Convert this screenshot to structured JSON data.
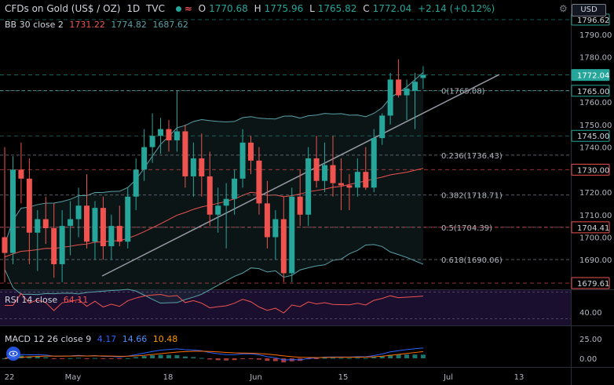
{
  "header": {
    "symbol": "CFDs on Gold (US$ / OZ)",
    "interval": "1D",
    "source": "TVC",
    "o_label": "O",
    "o_value": "1770.68",
    "h_label": "H",
    "h_value": "1775.96",
    "l_label": "L",
    "l_value": "1765.82",
    "c_label": "C",
    "c_value": "1772.04",
    "change": "+2.14 (+0.12%)",
    "currency": "USD"
  },
  "bb_legend": {
    "name": "BB 30 close 2",
    "v1": "1731.22",
    "v2": "1774.82",
    "v3": "1687.62"
  },
  "rsi_legend": {
    "name": "RSI 14 close",
    "v1": "64.11"
  },
  "macd_legend": {
    "name": "MACD 12 26 close 9",
    "v1": "4.17",
    "v2": "14.66",
    "v3": "10.48"
  },
  "colors": {
    "up": "#26a69a",
    "down": "#ef5350",
    "bb_basis": "#ef5350",
    "bb_band": "#5aa0a8",
    "trendline": "#9598a1",
    "rsi_line": "#ef5350",
    "rsi_bg": "#1a0f2e",
    "macd_line": "#2962ff",
    "signal_line": "#ff6d00"
  },
  "chart_data": {
    "type": "candlestick",
    "x_labels": [
      "22",
      "May",
      "18",
      "Jun",
      "15",
      "Jul",
      "13"
    ],
    "y_labels": [
      "1790.00",
      "1780.00",
      "1760.00",
      "1750.00",
      "1740.00",
      "1720.00",
      "1710.00",
      "1700.00",
      "1690.00"
    ],
    "ylim": [
      1672,
      1802
    ],
    "price_tags": [
      {
        "label": "1796.62",
        "value": 1796.62,
        "style": "outline"
      },
      {
        "label": "1772.04",
        "value": 1772.04,
        "style": "filled"
      },
      {
        "label": "1765.00",
        "value": 1765.0,
        "style": "outline"
      },
      {
        "label": "1745.00",
        "value": 1745.0,
        "style": "outline"
      },
      {
        "label": "1730.00",
        "value": 1730.0,
        "style": "outline-red"
      },
      {
        "label": "1704.41",
        "value": 1704.41,
        "style": "outline-red"
      },
      {
        "label": "1679.61",
        "value": 1679.61,
        "style": "outline-red"
      }
    ],
    "fib_levels": [
      {
        "label": "0(1765.08)",
        "value": 1765.08
      },
      {
        "label": "0.236(1736.43)",
        "value": 1736.43
      },
      {
        "label": "0.382(1718.71)",
        "value": 1718.71
      },
      {
        "label": "0.5(1704.39)",
        "value": 1704.39
      },
      {
        "label": "0.618(1690.06)",
        "value": 1690.06
      }
    ],
    "candles": [
      {
        "o": 1700,
        "h": 1740,
        "l": 1680,
        "c": 1693
      },
      {
        "o": 1693,
        "h": 1736,
        "l": 1688,
        "c": 1730
      },
      {
        "o": 1730,
        "h": 1742,
        "l": 1715,
        "c": 1726
      },
      {
        "o": 1726,
        "h": 1735,
        "l": 1688,
        "c": 1702
      },
      {
        "o": 1702,
        "h": 1712,
        "l": 1685,
        "c": 1708
      },
      {
        "o": 1708,
        "h": 1718,
        "l": 1697,
        "c": 1704
      },
      {
        "o": 1704,
        "h": 1715,
        "l": 1682,
        "c": 1688
      },
      {
        "o": 1688,
        "h": 1712,
        "l": 1680,
        "c": 1705
      },
      {
        "o": 1705,
        "h": 1716,
        "l": 1692,
        "c": 1708
      },
      {
        "o": 1708,
        "h": 1722,
        "l": 1700,
        "c": 1714
      },
      {
        "o": 1714,
        "h": 1728,
        "l": 1695,
        "c": 1698
      },
      {
        "o": 1698,
        "h": 1716,
        "l": 1690,
        "c": 1713
      },
      {
        "o": 1713,
        "h": 1718,
        "l": 1690,
        "c": 1696
      },
      {
        "o": 1696,
        "h": 1710,
        "l": 1690,
        "c": 1705
      },
      {
        "o": 1705,
        "h": 1714,
        "l": 1696,
        "c": 1698
      },
      {
        "o": 1698,
        "h": 1722,
        "l": 1695,
        "c": 1718
      },
      {
        "o": 1718,
        "h": 1735,
        "l": 1712,
        "c": 1730
      },
      {
        "o": 1730,
        "h": 1748,
        "l": 1725,
        "c": 1740
      },
      {
        "o": 1740,
        "h": 1755,
        "l": 1733,
        "c": 1745
      },
      {
        "o": 1745,
        "h": 1753,
        "l": 1737,
        "c": 1748
      },
      {
        "o": 1748,
        "h": 1752,
        "l": 1738,
        "c": 1743
      },
      {
        "o": 1743,
        "h": 1765,
        "l": 1738,
        "c": 1747
      },
      {
        "o": 1747,
        "h": 1750,
        "l": 1722,
        "c": 1727
      },
      {
        "o": 1727,
        "h": 1742,
        "l": 1718,
        "c": 1735
      },
      {
        "o": 1735,
        "h": 1746,
        "l": 1718,
        "c": 1727
      },
      {
        "o": 1727,
        "h": 1738,
        "l": 1705,
        "c": 1710
      },
      {
        "o": 1710,
        "h": 1722,
        "l": 1702,
        "c": 1714
      },
      {
        "o": 1714,
        "h": 1724,
        "l": 1695,
        "c": 1717
      },
      {
        "o": 1717,
        "h": 1730,
        "l": 1710,
        "c": 1726
      },
      {
        "o": 1726,
        "h": 1748,
        "l": 1722,
        "c": 1742
      },
      {
        "o": 1742,
        "h": 1745,
        "l": 1728,
        "c": 1734
      },
      {
        "o": 1734,
        "h": 1740,
        "l": 1710,
        "c": 1715
      },
      {
        "o": 1715,
        "h": 1725,
        "l": 1695,
        "c": 1700
      },
      {
        "o": 1700,
        "h": 1712,
        "l": 1690,
        "c": 1708
      },
      {
        "o": 1708,
        "h": 1718,
        "l": 1680,
        "c": 1684
      },
      {
        "o": 1684,
        "h": 1722,
        "l": 1680,
        "c": 1718
      },
      {
        "o": 1718,
        "h": 1730,
        "l": 1705,
        "c": 1710
      },
      {
        "o": 1710,
        "h": 1740,
        "l": 1705,
        "c": 1735
      },
      {
        "o": 1735,
        "h": 1745,
        "l": 1722,
        "c": 1725
      },
      {
        "o": 1725,
        "h": 1742,
        "l": 1720,
        "c": 1732
      },
      {
        "o": 1732,
        "h": 1745,
        "l": 1718,
        "c": 1724
      },
      {
        "o": 1724,
        "h": 1735,
        "l": 1712,
        "c": 1723
      },
      {
        "o": 1723,
        "h": 1728,
        "l": 1712,
        "c": 1722
      },
      {
        "o": 1722,
        "h": 1735,
        "l": 1718,
        "c": 1729
      },
      {
        "o": 1729,
        "h": 1740,
        "l": 1721,
        "c": 1722
      },
      {
        "o": 1722,
        "h": 1748,
        "l": 1720,
        "c": 1744
      },
      {
        "o": 1744,
        "h": 1755,
        "l": 1741,
        "c": 1754
      },
      {
        "o": 1754,
        "h": 1773,
        "l": 1750,
        "c": 1770
      },
      {
        "o": 1770,
        "h": 1779,
        "l": 1762,
        "c": 1763
      },
      {
        "o": 1763,
        "h": 1770,
        "l": 1752,
        "c": 1766
      },
      {
        "o": 1765,
        "h": 1773,
        "l": 1748,
        "c": 1769
      },
      {
        "o": 1770.68,
        "h": 1775.96,
        "l": 1765.82,
        "c": 1772.04
      }
    ],
    "rsi_tick": "40.00",
    "macd_ticks": [
      "25.00",
      "0.00"
    ]
  }
}
